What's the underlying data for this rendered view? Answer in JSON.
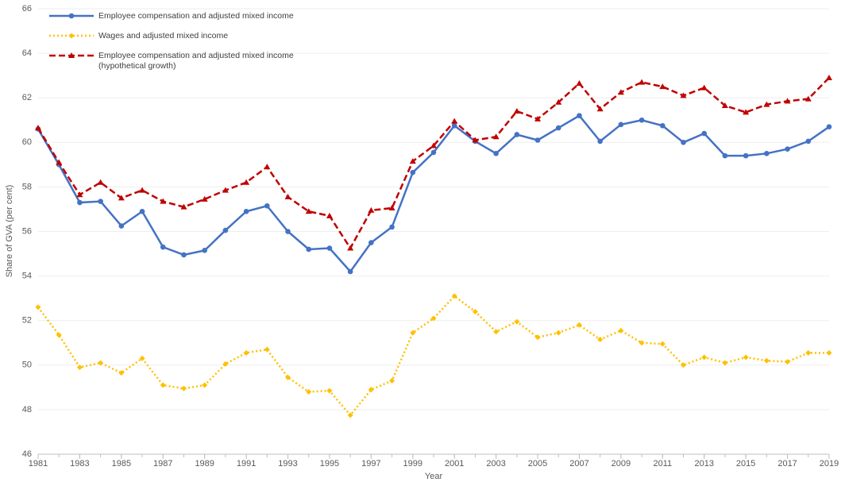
{
  "chart_data": {
    "type": "line",
    "x_label": "Year",
    "y_label": "Share of GVA (per cent)",
    "x": [
      1981,
      1982,
      1983,
      1984,
      1985,
      1986,
      1987,
      1988,
      1989,
      1990,
      1991,
      1992,
      1993,
      1994,
      1995,
      1996,
      1997,
      1998,
      1999,
      2000,
      2001,
      2002,
      2003,
      2004,
      2005,
      2006,
      2007,
      2008,
      2009,
      2010,
      2011,
      2012,
      2013,
      2014,
      2015,
      2016,
      2017,
      2018,
      2019
    ],
    "xlim": [
      1981,
      2019
    ],
    "xticks": [
      1981,
      1983,
      1985,
      1987,
      1989,
      1991,
      1993,
      1995,
      1997,
      1999,
      2001,
      2003,
      2005,
      2007,
      2009,
      2011,
      2013,
      2015,
      2017,
      2019
    ],
    "ylim": [
      46,
      66
    ],
    "yticks": [
      46,
      48,
      50,
      52,
      54,
      56,
      58,
      60,
      62,
      64,
      66
    ],
    "grid": true,
    "legend": "top-left",
    "series": [
      {
        "name": "Employee compensation and adjusted mixed income",
        "color": "#4472c4",
        "line_style": "solid",
        "marker": "circle",
        "values": [
          60.6,
          59.0,
          57.3,
          57.35,
          56.25,
          56.9,
          55.3,
          54.95,
          55.15,
          56.05,
          56.9,
          57.15,
          56.0,
          55.2,
          55.25,
          54.2,
          55.5,
          56.2,
          58.65,
          59.55,
          60.75,
          60.05,
          59.5,
          60.35,
          60.1,
          60.65,
          61.2,
          60.05,
          60.8,
          61.0,
          60.75,
          60.0,
          60.4,
          59.4,
          59.4,
          59.5,
          59.7,
          60.05,
          60.7
        ]
      },
      {
        "name": "Wages and adjusted mixed income",
        "color": "#ffc000",
        "line_style": "dotted",
        "marker": "diamond",
        "values": [
          52.6,
          51.35,
          49.9,
          50.1,
          49.65,
          50.3,
          49.1,
          48.95,
          49.1,
          50.05,
          50.55,
          50.7,
          49.45,
          48.8,
          48.85,
          47.75,
          48.9,
          49.3,
          51.45,
          52.1,
          53.1,
          52.4,
          51.5,
          51.95,
          51.25,
          51.45,
          51.8,
          51.15,
          51.55,
          51.0,
          50.95,
          50.0,
          50.35,
          50.1,
          50.35,
          50.2,
          50.15,
          50.55,
          50.55
        ]
      },
      {
        "name": "Employee compensation and adjusted mixed income\n(hypothetical growth)",
        "color": "#c00000",
        "line_style": "dashed",
        "marker": "triangle",
        "values": [
          60.65,
          59.1,
          57.65,
          58.2,
          57.5,
          57.85,
          57.35,
          57.1,
          57.45,
          57.85,
          58.2,
          58.9,
          57.55,
          56.9,
          56.7,
          55.25,
          56.95,
          57.05,
          59.15,
          59.85,
          60.95,
          60.1,
          60.25,
          61.4,
          61.05,
          61.8,
          62.65,
          61.5,
          62.25,
          62.7,
          62.5,
          62.1,
          62.45,
          61.65,
          61.35,
          61.7,
          61.85,
          61.95,
          62.9
        ]
      }
    ]
  }
}
